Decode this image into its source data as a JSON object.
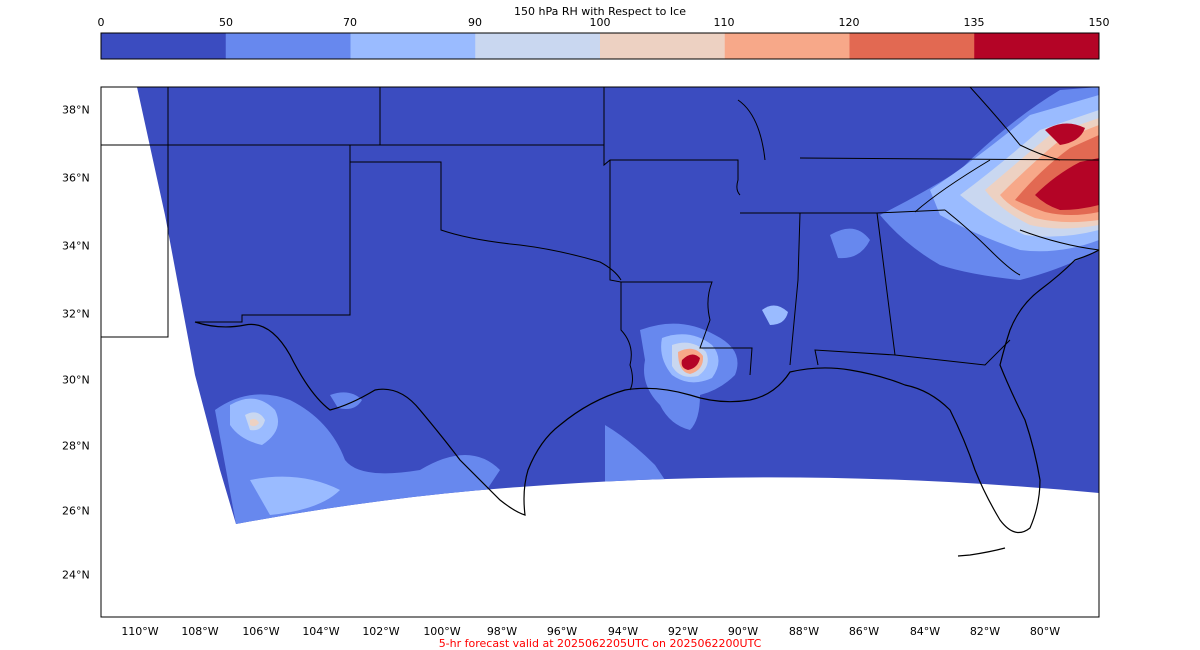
{
  "colorbar": {
    "title": "150 hPa RH with Respect to Ice",
    "ticks": [
      "0",
      "50",
      "70",
      "90",
      "100",
      "110",
      "120",
      "135",
      "150"
    ],
    "colors": [
      "#3b4cc0",
      "#6788ee",
      "#9abbff",
      "#c9d7f0",
      "#edd1c2",
      "#f7a889",
      "#e26952",
      "#b40426"
    ]
  },
  "map": {
    "lat_labels": [
      "38°N",
      "36°N",
      "34°N",
      "32°N",
      "30°N",
      "28°N",
      "26°N",
      "24°N"
    ],
    "lon_labels": [
      "110°W",
      "108°W",
      "106°W",
      "104°W",
      "102°W",
      "100°W",
      "98°W",
      "96°W",
      "94°W",
      "92°W",
      "90°W",
      "88°W",
      "86°W",
      "84°W",
      "82°W",
      "80°W"
    ],
    "background_color": "#3b4cc0",
    "features": [
      {
        "name": "ne-moist-band",
        "level": 1
      },
      {
        "name": "ne-moist-core",
        "level": 4
      },
      {
        "name": "louisiana-cell",
        "level": 5
      },
      {
        "name": "mexico-patches",
        "level": 2
      },
      {
        "name": "gulf-patches",
        "level": 1
      }
    ]
  },
  "footer": {
    "text": "5-hr forecast valid at 2025062205UTC on 2025062200UTC"
  }
}
